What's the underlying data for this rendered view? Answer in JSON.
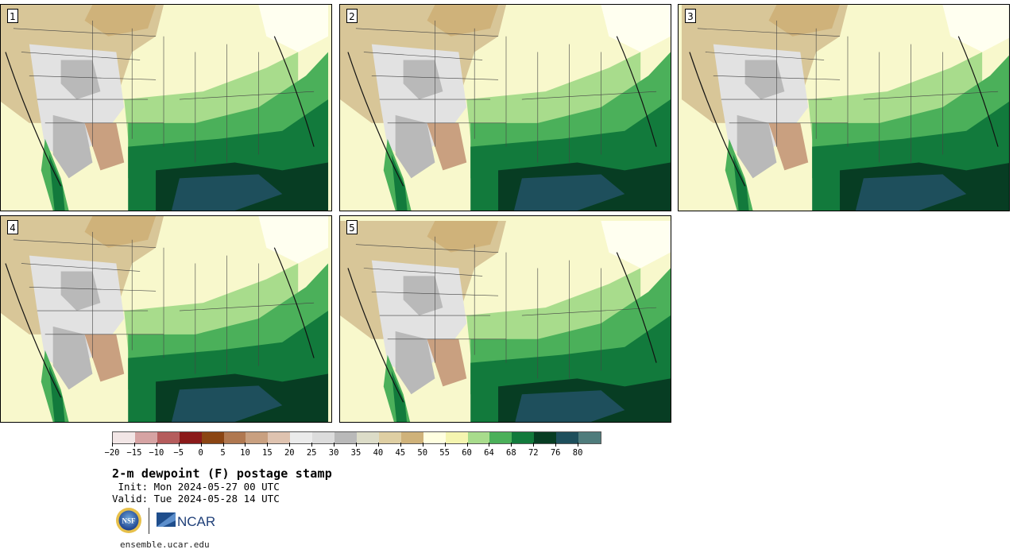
{
  "panels": [
    {
      "label": "1"
    },
    {
      "label": "2"
    },
    {
      "label": "3"
    },
    {
      "label": "4"
    },
    {
      "label": "5"
    }
  ],
  "colorbar": {
    "colors": [
      "#f2e6e6",
      "#d6a3a3",
      "#b55c5c",
      "#8b1a1a",
      "#8b4513",
      "#b07850",
      "#c9a080",
      "#dfc3b0",
      "#ebebeb",
      "#dcdcdc",
      "#b9b9b9",
      "#dcdcc8",
      "#dfcfa3",
      "#cfb27a",
      "#ffffe0",
      "#f5f5b0",
      "#a8dc8c",
      "#4bb05a",
      "#127a3c",
      "#073d23",
      "#1e4f5c",
      "#4f7c7c"
    ],
    "tick_labels": [
      "−20",
      "−15",
      "−10",
      "−5",
      "0",
      "5",
      "10",
      "15",
      "20",
      "25",
      "30",
      "35",
      "40",
      "45",
      "50",
      "55",
      "60",
      "64",
      "68",
      "72",
      "76",
      "80"
    ]
  },
  "title": "2-m dewpoint (F) postage stamp",
  "init_line": " Init: Mon 2024-05-27 00 UTC",
  "valid_line": "Valid: Tue 2024-05-28 14 UTC",
  "logos": {
    "nsf": "NSF",
    "ncar": "NCAR"
  },
  "footer": "ensemble.ucar.edu"
}
